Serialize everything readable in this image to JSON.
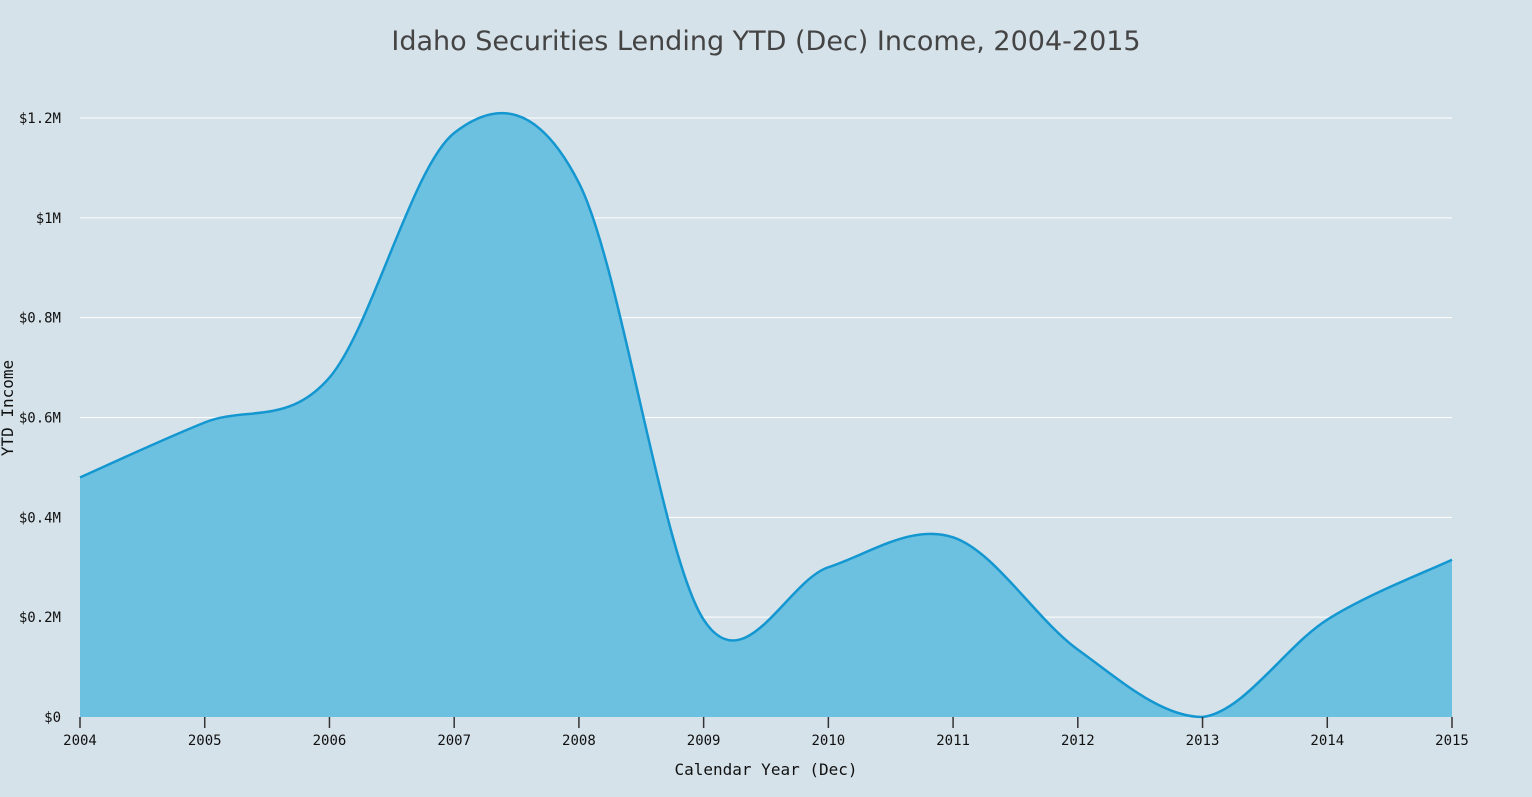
{
  "chart_data": {
    "type": "area",
    "title": "Idaho Securities Lending YTD (Dec) Income, 2004-2015",
    "xlabel": "Calendar Year (Dec)",
    "ylabel": "YTD Income",
    "x": [
      2004,
      2005,
      2006,
      2007,
      2008,
      2009,
      2010,
      2011,
      2012,
      2013,
      2014,
      2015
    ],
    "series": [
      {
        "values": [
          480000,
          590000,
          680000,
          1170000,
          1070000,
          195000,
          300000,
          360000,
          135000,
          0,
          195000,
          315000
        ]
      }
    ],
    "xlim": [
      2004,
      2015
    ],
    "ylim": [
      0,
      1200000
    ],
    "y_ticks": [
      0,
      200000,
      400000,
      600000,
      800000,
      1000000,
      1200000
    ],
    "y_tick_labels": [
      "$0",
      "$0.2M",
      "$0.4M",
      "$0.6M",
      "$0.8M",
      "$1M",
      "$1.2M"
    ],
    "x_tick_labels": [
      "2004",
      "2005",
      "2006",
      "2007",
      "2008",
      "2009",
      "2010",
      "2011",
      "2012",
      "2013",
      "2014",
      "2015"
    ],
    "grid": true,
    "legend": "none",
    "colors": {
      "background": "#d5e2ea",
      "line": "#1497d0",
      "fill": "#6cc0e0"
    }
  }
}
